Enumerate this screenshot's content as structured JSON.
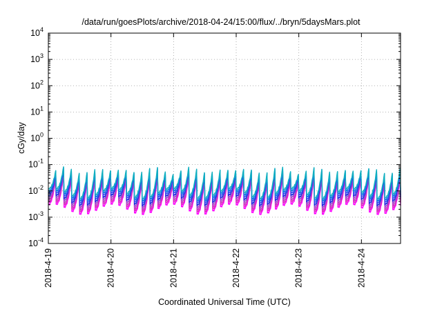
{
  "chart_data": {
    "type": "line",
    "title": "/data/run/goesPlots/archive/2018-04-24/15:00/flux/../bryn/5daysMars.plot",
    "xlabel": "Coordinated Universal Time (UTC)",
    "ylabel": "cGy/day",
    "yscale": "log",
    "ylim": [
      0.0001,
      10000
    ],
    "y_ticks": [
      {
        "base": "10",
        "exp": "4"
      },
      {
        "base": "10",
        "exp": "3"
      },
      {
        "base": "10",
        "exp": "2"
      },
      {
        "base": "10",
        "exp": "1"
      },
      {
        "base": "10",
        "exp": "0"
      },
      {
        "base": "10",
        "exp": "-1"
      },
      {
        "base": "10",
        "exp": "-2"
      },
      {
        "base": "10",
        "exp": "-3"
      },
      {
        "base": "10",
        "exp": "-4"
      }
    ],
    "xlim": [
      "2018-04-19 00:00",
      "2018-04-24 15:00"
    ],
    "x_ticks": [
      "2018-4-19",
      "2018-4-20",
      "2018-4-21",
      "2018-4-22",
      "2018-4-23",
      "2018-4-24"
    ],
    "grid": true,
    "pattern": {
      "shape": "sawtooth",
      "period_hours": 3,
      "peak_range": [
        0.04,
        0.08
      ],
      "trough_range": [
        0.002,
        0.005
      ]
    },
    "series_colors": [
      "#ff00ff",
      "#e020c0",
      "#c040c0",
      "#a050d0",
      "#2030e0",
      "#3050f0",
      "#1080e0",
      "#10b0c0"
    ]
  }
}
